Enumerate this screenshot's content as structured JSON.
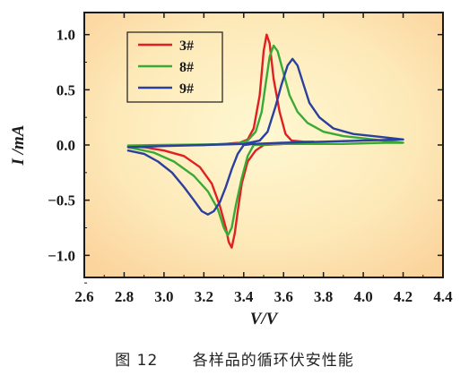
{
  "chart_data": {
    "type": "line",
    "title": "",
    "xlabel": "V/V",
    "ylabel": "I /mA",
    "xlim": [
      2.6,
      4.4
    ],
    "ylim": [
      -1.2,
      1.2
    ],
    "xticks": [
      "2.6",
      "2.8",
      "3.0",
      "3.2",
      "3.4",
      "3.6",
      "3.8",
      "4.0",
      "4.2",
      "4.4"
    ],
    "yticks": [
      "1.0",
      "0.5",
      "0.0",
      "−0.5",
      "−1.0"
    ],
    "ytick_values": [
      1.0,
      0.5,
      0.0,
      -0.5,
      -1.0
    ],
    "xtick_values": [
      2.6,
      2.8,
      3.0,
      3.2,
      3.4,
      3.6,
      3.8,
      4.0,
      4.2,
      4.4
    ],
    "legend_position": "top-left",
    "grid": false,
    "background": "warm radial gradient (light yellow center to light orange edges)",
    "series": [
      {
        "name": "3#",
        "color": "#e02020",
        "points": [
          [
            2.82,
            -0.01
          ],
          [
            3.0,
            -0.005
          ],
          [
            3.2,
            0.0
          ],
          [
            3.3,
            0.01
          ],
          [
            3.38,
            0.02
          ],
          [
            3.42,
            0.05
          ],
          [
            3.45,
            0.15
          ],
          [
            3.48,
            0.45
          ],
          [
            3.5,
            0.85
          ],
          [
            3.515,
            1.0
          ],
          [
            3.53,
            0.92
          ],
          [
            3.55,
            0.6
          ],
          [
            3.58,
            0.3
          ],
          [
            3.61,
            0.1
          ],
          [
            3.64,
            0.04
          ],
          [
            3.7,
            0.03
          ],
          [
            3.75,
            0.03
          ],
          [
            3.7,
            0.02
          ],
          [
            3.6,
            0.01
          ],
          [
            3.5,
            0.0
          ],
          [
            3.46,
            -0.05
          ],
          [
            3.42,
            -0.15
          ],
          [
            3.39,
            -0.35
          ],
          [
            3.37,
            -0.6
          ],
          [
            3.355,
            -0.8
          ],
          [
            3.34,
            -0.93
          ],
          [
            3.325,
            -0.88
          ],
          [
            3.31,
            -0.75
          ],
          [
            3.28,
            -0.55
          ],
          [
            3.24,
            -0.35
          ],
          [
            3.18,
            -0.2
          ],
          [
            3.1,
            -0.1
          ],
          [
            3.0,
            -0.05
          ],
          [
            2.9,
            -0.02
          ],
          [
            2.82,
            -0.01
          ]
        ]
      },
      {
        "name": "8#",
        "color": "#3aaa35",
        "points": [
          [
            2.82,
            -0.005
          ],
          [
            3.0,
            0.0
          ],
          [
            3.2,
            0.005
          ],
          [
            3.36,
            0.01
          ],
          [
            3.42,
            0.04
          ],
          [
            3.46,
            0.12
          ],
          [
            3.49,
            0.3
          ],
          [
            3.51,
            0.55
          ],
          [
            3.53,
            0.8
          ],
          [
            3.55,
            0.9
          ],
          [
            3.57,
            0.85
          ],
          [
            3.6,
            0.65
          ],
          [
            3.63,
            0.45
          ],
          [
            3.67,
            0.3
          ],
          [
            3.72,
            0.2
          ],
          [
            3.8,
            0.12
          ],
          [
            3.9,
            0.08
          ],
          [
            4.0,
            0.06
          ],
          [
            4.1,
            0.04
          ],
          [
            4.2,
            0.02
          ],
          [
            4.1,
            0.02
          ],
          [
            3.9,
            0.01
          ],
          [
            3.6,
            0.01
          ],
          [
            3.45,
            0.0
          ],
          [
            3.42,
            -0.1
          ],
          [
            3.39,
            -0.3
          ],
          [
            3.36,
            -0.55
          ],
          [
            3.34,
            -0.75
          ],
          [
            3.32,
            -0.82
          ],
          [
            3.3,
            -0.75
          ],
          [
            3.27,
            -0.58
          ],
          [
            3.22,
            -0.42
          ],
          [
            3.15,
            -0.28
          ],
          [
            3.05,
            -0.15
          ],
          [
            2.95,
            -0.07
          ],
          [
            2.82,
            -0.02
          ]
        ]
      },
      {
        "name": "9#",
        "color": "#2b3f9e",
        "points": [
          [
            2.82,
            -0.02
          ],
          [
            3.0,
            -0.01
          ],
          [
            3.2,
            0.0
          ],
          [
            3.4,
            0.01
          ],
          [
            3.48,
            0.04
          ],
          [
            3.52,
            0.12
          ],
          [
            3.56,
            0.35
          ],
          [
            3.59,
            0.55
          ],
          [
            3.62,
            0.72
          ],
          [
            3.645,
            0.78
          ],
          [
            3.67,
            0.72
          ],
          [
            3.7,
            0.55
          ],
          [
            3.73,
            0.38
          ],
          [
            3.78,
            0.25
          ],
          [
            3.85,
            0.15
          ],
          [
            3.95,
            0.1
          ],
          [
            4.05,
            0.08
          ],
          [
            4.15,
            0.06
          ],
          [
            4.2,
            0.05
          ],
          [
            4.0,
            0.04
          ],
          [
            3.8,
            0.03
          ],
          [
            3.6,
            0.02
          ],
          [
            3.45,
            0.01
          ],
          [
            3.4,
            0.0
          ],
          [
            3.37,
            -0.08
          ],
          [
            3.34,
            -0.22
          ],
          [
            3.31,
            -0.38
          ],
          [
            3.28,
            -0.52
          ],
          [
            3.25,
            -0.6
          ],
          [
            3.22,
            -0.63
          ],
          [
            3.19,
            -0.6
          ],
          [
            3.15,
            -0.5
          ],
          [
            3.1,
            -0.38
          ],
          [
            3.04,
            -0.25
          ],
          [
            2.97,
            -0.15
          ],
          [
            2.9,
            -0.08
          ],
          [
            2.82,
            -0.05
          ]
        ]
      }
    ]
  },
  "caption": {
    "label": "图 12",
    "text": "各样品的循环伏安性能"
  },
  "colors": {
    "axis": "#1a1a1a",
    "bg_center": "#fff7cf",
    "bg_edge": "#fcd9a4"
  }
}
